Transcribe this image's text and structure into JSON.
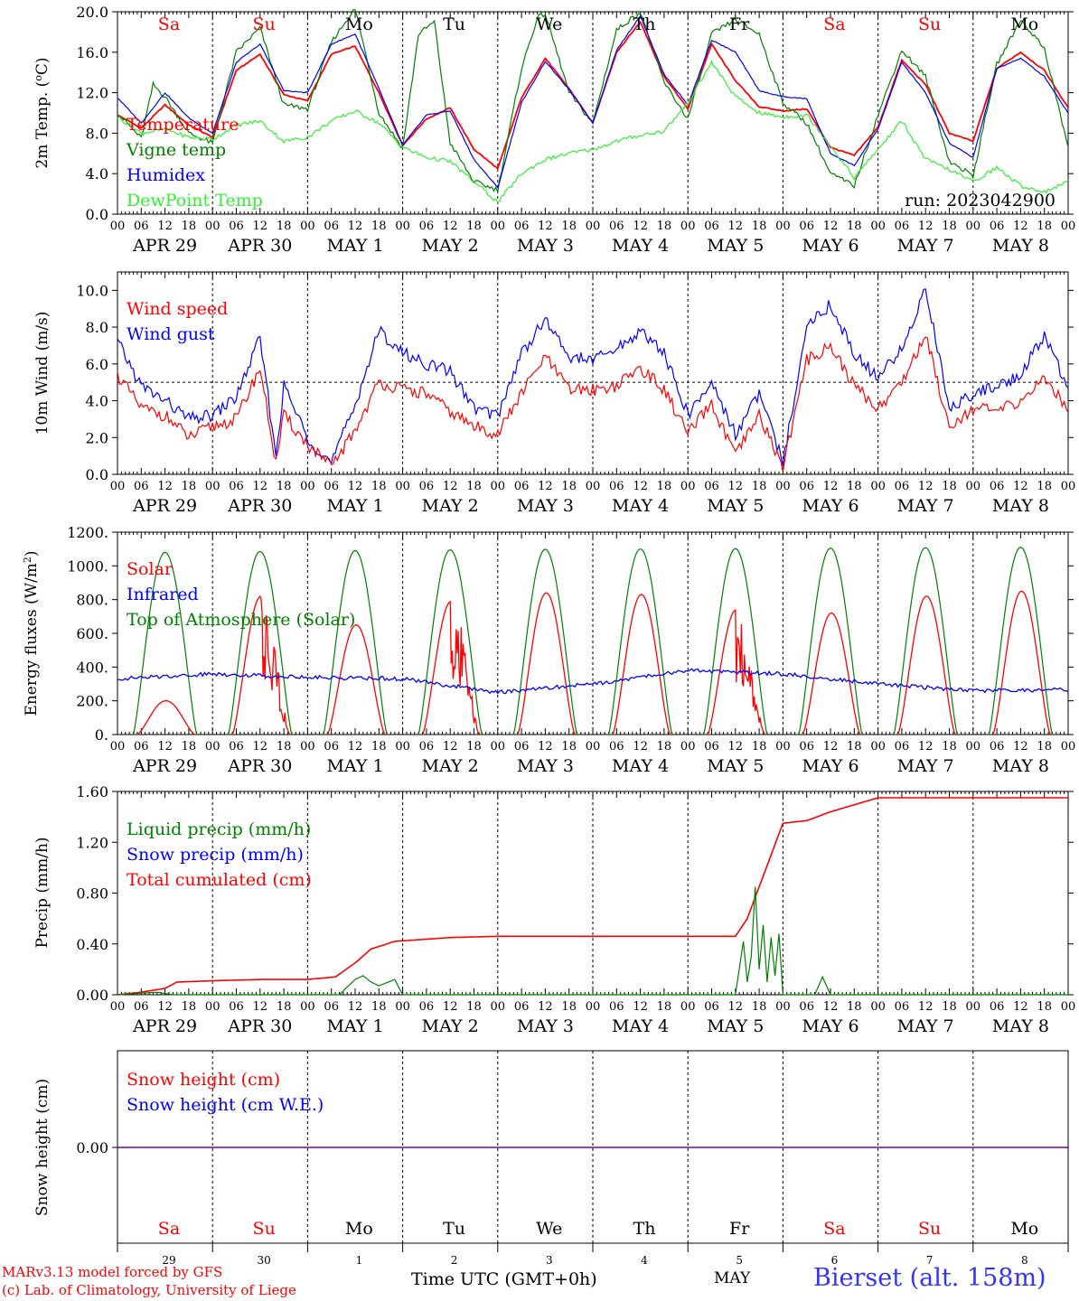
{
  "days_date": [
    "APR 29",
    "APR 30",
    "MAY  1",
    "MAY  2",
    "MAY  3",
    "MAY  4",
    "MAY  5",
    "MAY  6",
    "MAY  7",
    "MAY  8"
  ],
  "days_weekday": [
    "Sa",
    "Su",
    "Mo",
    "Tu",
    "We",
    "Th",
    "Fr",
    "Sa",
    "Su",
    "Mo"
  ],
  "hour_ticks": [
    "00",
    "06",
    "12",
    "18"
  ],
  "last_hour_tick": "00",
  "bottom_day_numbers": [
    "29",
    "30",
    "1",
    "2",
    "3",
    "4",
    "5",
    "6",
    "7",
    "8"
  ],
  "bottom_month": "MAY",
  "xaxis_label": "Time UTC (GMT+0h)",
  "credit_line1": "MARv3.13 model forced by GFS",
  "credit_line2": "(c) Lab. of Climatology, University of Liege",
  "station": "Bierset (alt. 158m)",
  "run_label": "run: 2023042900",
  "colors": {
    "red": "#ff0000",
    "blue": "#0000ff",
    "green": "#008000",
    "lightgreen": "#33ee33",
    "purple": "#8000a0",
    "weekend": "#ff0000",
    "weekday": "#000000",
    "station": "#3333ff"
  },
  "chart_data": [
    {
      "type": "line",
      "ylabel_prefix": "2m Temp. (",
      "ylabel_degree": "o",
      "ylabel_suffix": "C)",
      "ylim": [
        0,
        20
      ],
      "yticks": [
        "0.0",
        "4.0",
        "8.0",
        "12.0",
        "16.0",
        "20.0"
      ],
      "x_unit": "hours since APR 29 00 UTC",
      "series": [
        {
          "name": "Temperature",
          "color": "red",
          "x": [
            0,
            6,
            12,
            18,
            24,
            30,
            36,
            42,
            48,
            54,
            60,
            66,
            72,
            78,
            84,
            90,
            96,
            102,
            108,
            114,
            120,
            126,
            132,
            138,
            144,
            150,
            156,
            162,
            168,
            174,
            180,
            186,
            192,
            198,
            204,
            210,
            216,
            222,
            228,
            234,
            240
          ],
          "y": [
            9.8,
            8.5,
            10.8,
            8.8,
            7.6,
            14.2,
            15.8,
            11.8,
            11.2,
            15.8,
            16.6,
            12.0,
            6.8,
            9.4,
            10.5,
            6.4,
            4.5,
            11.5,
            15.4,
            12.4,
            9.0,
            16.0,
            19.0,
            13.6,
            10.4,
            16.8,
            13.2,
            10.6,
            10.2,
            10.4,
            6.6,
            5.8,
            8.6,
            15.2,
            12.8,
            8.0,
            7.2,
            14.4,
            16.0,
            14.2,
            10.5
          ]
        },
        {
          "name": "Vigne temp",
          "color": "green",
          "x": [
            0,
            6,
            9,
            12,
            18,
            24,
            30,
            36,
            42,
            48,
            54,
            60,
            66,
            72,
            76,
            80,
            84,
            90,
            96,
            102,
            106,
            108,
            114,
            120,
            126,
            132,
            138,
            144,
            150,
            156,
            162,
            168,
            174,
            180,
            186,
            192,
            198,
            204,
            210,
            216,
            222,
            228,
            234,
            240
          ],
          "y": [
            10.0,
            7.5,
            12.8,
            11.6,
            8.0,
            7.0,
            16.0,
            18.4,
            10.8,
            10.4,
            17.0,
            20.4,
            10.0,
            6.5,
            17.8,
            19.0,
            7.0,
            3.2,
            2.4,
            14.4,
            19.4,
            19.8,
            12.0,
            9.0,
            18.2,
            20.0,
            13.0,
            9.4,
            17.8,
            19.2,
            17.8,
            11.0,
            9.0,
            4.0,
            2.8,
            9.8,
            16.2,
            13.6,
            5.2,
            3.8,
            14.8,
            19.2,
            16.4,
            6.6
          ]
        },
        {
          "name": "Humidex",
          "color": "blue",
          "x": [
            0,
            6,
            12,
            18,
            24,
            30,
            36,
            42,
            48,
            54,
            60,
            66,
            72,
            78,
            84,
            90,
            96,
            102,
            108,
            114,
            120,
            126,
            132,
            138,
            144,
            150,
            156,
            162,
            168,
            174,
            180,
            186,
            192,
            198,
            204,
            210,
            216,
            222,
            228,
            234,
            240
          ],
          "y": [
            11.5,
            9.0,
            12.0,
            9.5,
            8.0,
            15.0,
            16.8,
            12.2,
            12.0,
            16.8,
            17.8,
            12.4,
            6.8,
            9.8,
            10.2,
            5.4,
            2.6,
            11.0,
            15.1,
            12.3,
            9.0,
            16.2,
            19.6,
            13.8,
            10.8,
            17.2,
            16.0,
            12.2,
            11.6,
            11.4,
            6.0,
            4.8,
            8.4,
            15.0,
            12.0,
            7.0,
            5.6,
            14.4,
            15.4,
            13.6,
            10.0
          ]
        },
        {
          "name": "DewPoint Temp",
          "color": "lightgreen",
          "x": [
            0,
            6,
            12,
            18,
            24,
            30,
            36,
            42,
            48,
            54,
            60,
            66,
            72,
            78,
            84,
            90,
            96,
            102,
            108,
            114,
            120,
            126,
            132,
            138,
            144,
            150,
            156,
            162,
            168,
            174,
            180,
            186,
            192,
            198,
            204,
            210,
            216,
            222,
            228,
            234,
            240
          ],
          "y": [
            9.6,
            8.0,
            8.4,
            7.6,
            7.4,
            8.8,
            9.2,
            7.2,
            7.6,
            9.2,
            10.2,
            9.0,
            6.6,
            5.6,
            5.2,
            3.2,
            1.2,
            4.0,
            5.4,
            6.0,
            6.4,
            7.2,
            7.8,
            8.2,
            11.0,
            15.0,
            11.6,
            10.0,
            9.6,
            9.8,
            6.8,
            3.6,
            6.4,
            9.2,
            5.4,
            4.4,
            3.2,
            4.6,
            2.8,
            2.2,
            3.2
          ]
        }
      ],
      "legend": [
        "Temperature",
        "Vigne temp",
        "Humidex",
        "DewPoint Temp"
      ]
    },
    {
      "type": "line",
      "ylabel": "10m Wind (m/s)",
      "ylim": [
        0,
        11
      ],
      "yticks": [
        "0.0",
        "2.0",
        "4.0",
        "6.0",
        "8.0",
        "10.0"
      ],
      "reference_line": 5.0,
      "series": [
        {
          "name": "Wind speed",
          "color": "red",
          "x": [
            0,
            6,
            12,
            18,
            24,
            30,
            36,
            40,
            42,
            48,
            54,
            60,
            66,
            72,
            78,
            84,
            90,
            96,
            102,
            108,
            114,
            120,
            126,
            132,
            138,
            144,
            150,
            156,
            162,
            168,
            174,
            180,
            186,
            192,
            198,
            204,
            210,
            216,
            222,
            228,
            234,
            240
          ],
          "y": [
            5.4,
            3.6,
            3.2,
            2.0,
            2.6,
            3.0,
            5.8,
            0.6,
            3.2,
            1.6,
            0.4,
            2.4,
            5.0,
            4.6,
            4.4,
            3.4,
            2.6,
            2.2,
            4.4,
            6.4,
            4.6,
            4.6,
            4.8,
            5.8,
            4.6,
            2.2,
            3.8,
            1.0,
            3.2,
            0.4,
            6.2,
            7.0,
            4.8,
            3.6,
            5.0,
            7.6,
            2.6,
            3.6,
            3.4,
            4.0,
            5.2,
            3.6
          ]
        },
        {
          "name": "Wind gust",
          "color": "blue",
          "x": [
            0,
            6,
            12,
            18,
            24,
            30,
            36,
            40,
            42,
            48,
            54,
            60,
            66,
            72,
            78,
            84,
            90,
            96,
            102,
            108,
            114,
            120,
            126,
            132,
            138,
            144,
            150,
            156,
            162,
            168,
            174,
            180,
            186,
            192,
            198,
            204,
            210,
            216,
            222,
            228,
            234,
            240
          ],
          "y": [
            7.2,
            4.8,
            4.0,
            3.0,
            3.2,
            4.2,
            7.4,
            1.0,
            4.8,
            2.0,
            0.6,
            3.8,
            7.8,
            6.6,
            6.0,
            5.6,
            3.6,
            3.2,
            6.6,
            8.4,
            6.4,
            6.2,
            6.8,
            7.8,
            6.6,
            3.2,
            5.0,
            2.2,
            4.4,
            0.6,
            8.2,
            9.2,
            6.6,
            5.2,
            6.8,
            10.1,
            3.6,
            4.4,
            4.8,
            5.4,
            7.6,
            4.6
          ]
        }
      ],
      "legend": [
        "Wind speed",
        "Wind gust"
      ]
    },
    {
      "type": "line",
      "ylabel_prefix": "Energy fluxes (W/m",
      "ylabel_sup": "2",
      "ylabel_suffix": ")",
      "ylim": [
        0,
        1200
      ],
      "yticks": [
        "0.",
        "200.",
        "400.",
        "600.",
        "800.",
        "1000.",
        "1200."
      ],
      "toa_peaks": [
        1080,
        1085,
        1090,
        1095,
        1098,
        1100,
        1102,
        1105,
        1108,
        1110
      ],
      "solar_peaks": [
        200,
        820,
        650,
        790,
        840,
        830,
        740,
        720,
        820,
        850
      ],
      "infrared": {
        "x": [
          0,
          24,
          48,
          72,
          96,
          120,
          144,
          168,
          192,
          216,
          240
        ],
        "y": [
          330,
          360,
          340,
          330,
          250,
          300,
          380,
          360,
          300,
          260,
          265
        ]
      },
      "series_names": [
        "Solar",
        "Infrared",
        "Top of Atmosphere (Solar)"
      ],
      "legend": [
        "Solar",
        "Infrared",
        "Top of Atmosphere (Solar)"
      ]
    },
    {
      "type": "line",
      "ylabel": "Precip (mm/h)",
      "ylim": [
        0,
        1.6
      ],
      "yticks": [
        "0.00",
        "0.40",
        "0.80",
        "1.20",
        "1.60"
      ],
      "series": [
        {
          "name": "Total cumulated (cm)",
          "color": "red",
          "x": [
            0,
            6,
            12,
            15,
            24,
            36,
            48,
            55,
            60,
            64,
            70,
            84,
            96,
            120,
            144,
            156,
            159,
            162,
            165,
            168,
            174,
            180,
            192,
            216,
            240
          ],
          "y": [
            0,
            0.02,
            0.05,
            0.1,
            0.11,
            0.12,
            0.12,
            0.14,
            0.25,
            0.36,
            0.42,
            0.45,
            0.46,
            0.46,
            0.46,
            0.46,
            0.6,
            0.85,
            1.1,
            1.35,
            1.37,
            1.44,
            1.55,
            1.55,
            1.55
          ]
        },
        {
          "name": "Liquid precip (mm/h)",
          "color": "green",
          "x": [
            0,
            10,
            14,
            56,
            58,
            60,
            62,
            64,
            66,
            70,
            72,
            156,
            158,
            159,
            160,
            161,
            162,
            163,
            164,
            165,
            166,
            167,
            168,
            176,
            178,
            180
          ],
          "y": [
            0,
            0.02,
            0,
            0,
            0.06,
            0.12,
            0.15,
            0.1,
            0.07,
            0.12,
            0,
            0,
            0.42,
            0.1,
            0.3,
            0.85,
            0.2,
            0.55,
            0.1,
            0.45,
            0.15,
            0.48,
            0,
            0,
            0.14,
            0
          ]
        },
        {
          "name": "Snow precip (mm/h)",
          "color": "blue",
          "x": [
            0,
            240
          ],
          "y": [
            0,
            0
          ]
        }
      ],
      "legend": [
        "Liquid precip (mm/h)",
        "Snow precip (mm/h)",
        "Total cumulated (cm)"
      ]
    },
    {
      "type": "line",
      "ylabel": "Snow height (cm)",
      "yticks": [
        "0.00"
      ],
      "series": [
        {
          "name": "Snow height (cm)",
          "color": "red",
          "x": [
            0,
            240
          ],
          "y": [
            0,
            0
          ]
        },
        {
          "name": "Snow height (cm W.E.)",
          "color": "blue",
          "x": [
            0,
            240
          ],
          "y": [
            0,
            0
          ]
        }
      ],
      "legend": [
        "Snow height (cm)",
        "Snow height (cm W.E.)"
      ]
    }
  ]
}
